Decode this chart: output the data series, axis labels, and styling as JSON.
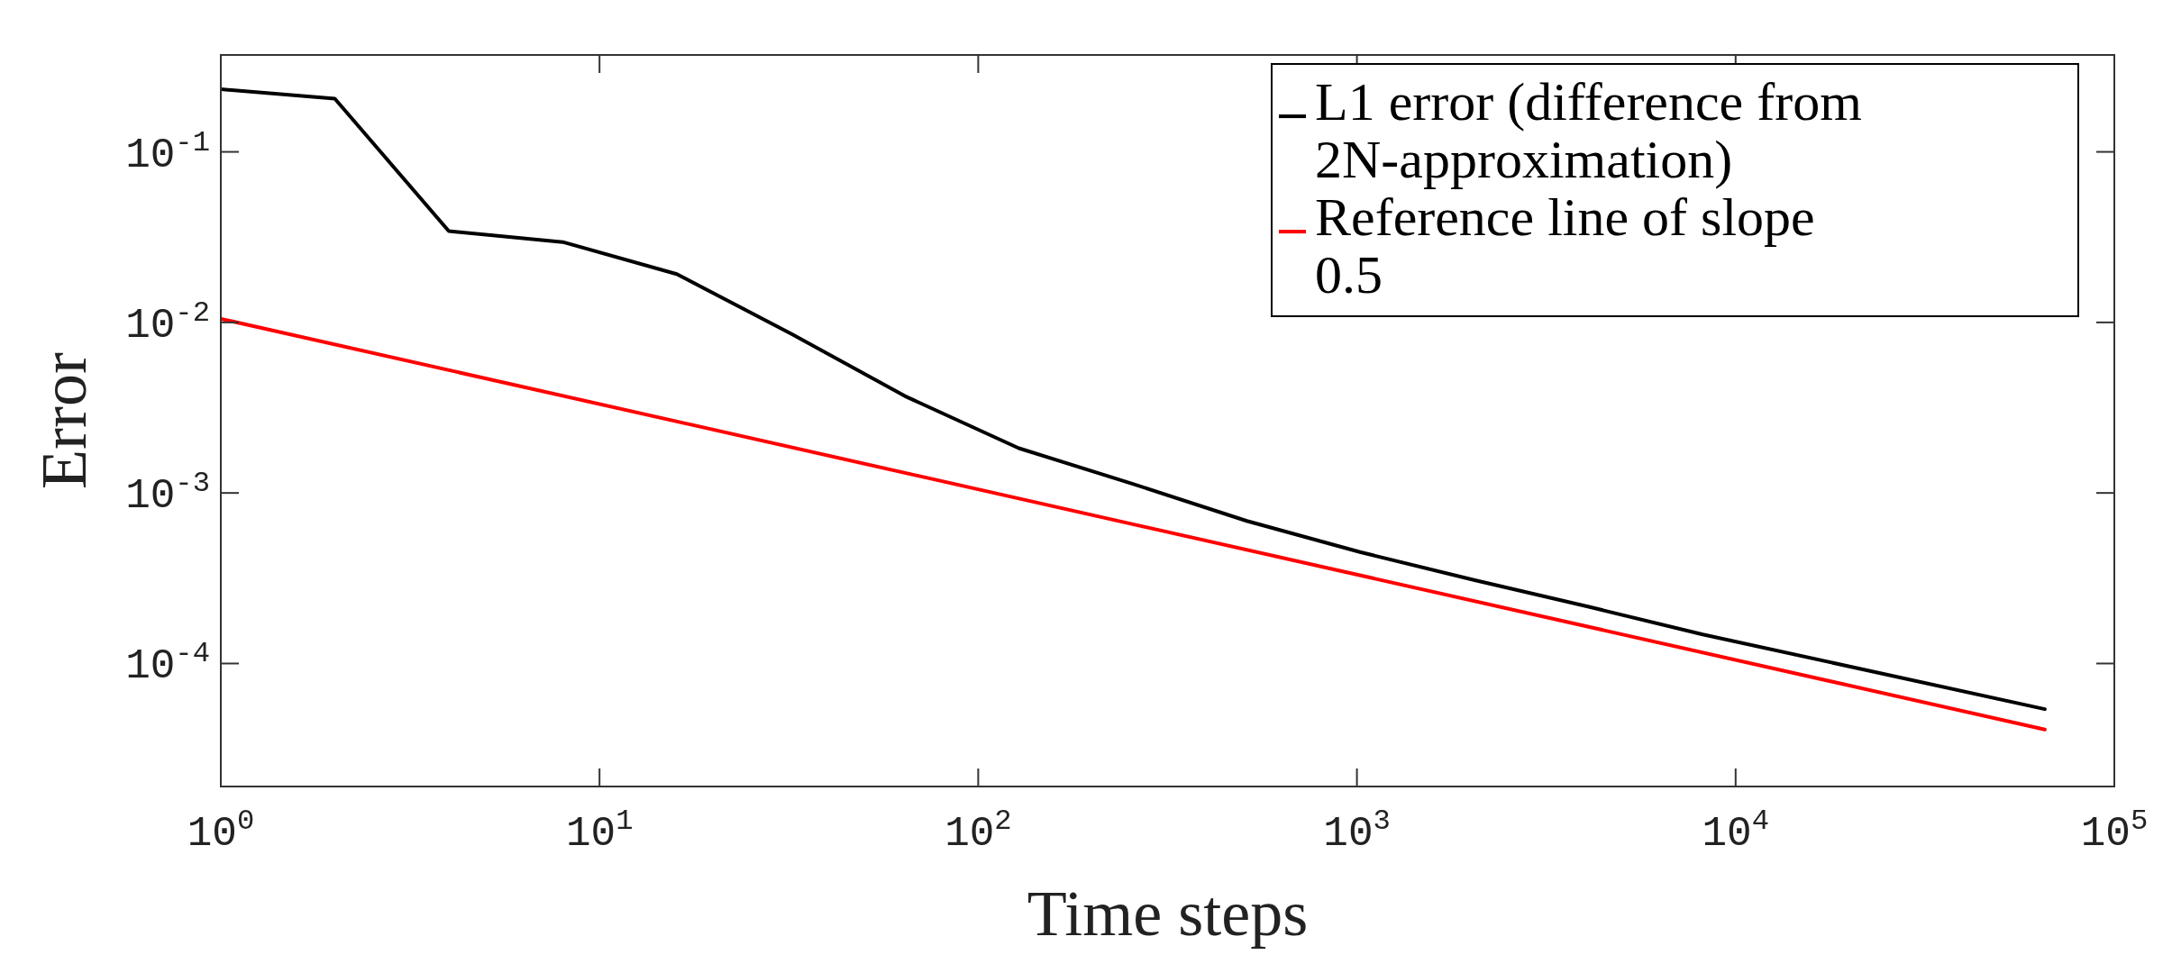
{
  "chart_data": {
    "type": "line",
    "xlabel": "Time steps",
    "ylabel": "Error",
    "log": "xy",
    "grid": false,
    "legend": "top right",
    "line_style": "solid",
    "marker": "none",
    "xlim": [
      1,
      100000
    ],
    "ylim": [
      1.9e-05,
      0.37
    ],
    "xticks": [
      {
        "value": 1,
        "label": "10$^{0}$"
      },
      {
        "value": 10,
        "label": "10$^{1}$"
      },
      {
        "value": 100,
        "label": "10$^{2}$"
      },
      {
        "value": 1000,
        "label": "10$^{3}$"
      },
      {
        "value": 10000,
        "label": "10$^{4}$"
      },
      {
        "value": 100000,
        "label": "10$^{5}$"
      }
    ],
    "yticks": [
      {
        "value": 0.0001,
        "label": "10$^{-4}$"
      },
      {
        "value": 0.001,
        "label": "10$^{-3}$"
      },
      {
        "value": 0.01,
        "label": "10$^{-2}$"
      },
      {
        "value": 0.1,
        "label": "10$^{-1}$"
      }
    ],
    "series": [
      {
        "name": "L1 error (difference from 2N-approximation)",
        "color": "#000000",
        "x": [
          1,
          2,
          4,
          8,
          16,
          32,
          64,
          128,
          256,
          512,
          1024,
          2048,
          4096,
          8192,
          65536
        ],
        "values": [
          0.233,
          0.205,
          0.0343,
          0.0296,
          0.0192,
          0.0086,
          0.0037,
          0.00183,
          0.00113,
          0.000685,
          0.000449,
          0.000308,
          0.000215,
          0.000148,
          5.4e-05
        ]
      },
      {
        "name": "Reference line of slope 0.5",
        "color": "#ff0000",
        "x": [
          1,
          65536
        ],
        "values": [
          0.0105,
          4.1e-05
        ]
      }
    ]
  }
}
